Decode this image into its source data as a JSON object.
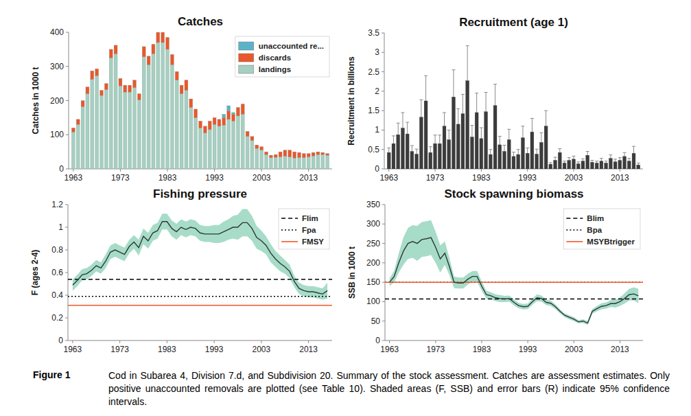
{
  "chart_data": [
    {
      "type": "bar",
      "title": "Catches",
      "y_label": "Catches in 1000 t",
      "stacked": true,
      "legend": "top-right",
      "x": [
        1963,
        1964,
        1965,
        1966,
        1967,
        1968,
        1969,
        1970,
        1971,
        1972,
        1973,
        1974,
        1975,
        1976,
        1977,
        1978,
        1979,
        1980,
        1981,
        1982,
        1983,
        1984,
        1985,
        1986,
        1987,
        1988,
        1989,
        1990,
        1991,
        1992,
        1993,
        1994,
        1995,
        1996,
        1997,
        1998,
        1999,
        2000,
        2001,
        2002,
        2003,
        2004,
        2005,
        2006,
        2007,
        2008,
        2009,
        2010,
        2011,
        2012,
        2013,
        2014,
        2015,
        2016,
        2017
      ],
      "xlim": [
        1962,
        2018
      ],
      "xticks": [
        1963,
        1973,
        1983,
        1993,
        2003,
        2013
      ],
      "ylim": [
        0,
        400
      ],
      "yticks": [
        0,
        100,
        200,
        300,
        400
      ],
      "series": [
        {
          "name": "landings",
          "color": "#a6cfc1",
          "values": [
            108,
            130,
            182,
            220,
            262,
            273,
            215,
            232,
            325,
            337,
            243,
            225,
            225,
            238,
            202,
            328,
            305,
            337,
            370,
            370,
            350,
            305,
            260,
            220,
            230,
            180,
            150,
            120,
            105,
            115,
            130,
            125,
            128,
            145,
            140,
            155,
            160,
            95,
            83,
            60,
            55,
            42,
            33,
            34,
            35,
            37,
            35,
            32,
            33,
            33,
            35,
            38,
            42,
            42,
            40
          ]
        },
        {
          "name": "discards",
          "color": "#e8582c",
          "values": [
            12,
            15,
            18,
            20,
            25,
            20,
            15,
            18,
            25,
            25,
            22,
            20,
            20,
            22,
            18,
            30,
            25,
            28,
            30,
            30,
            35,
            30,
            25,
            25,
            30,
            25,
            25,
            20,
            20,
            25,
            20,
            20,
            22,
            25,
            20,
            25,
            30,
            15,
            12,
            10,
            10,
            8,
            7,
            8,
            15,
            18,
            20,
            18,
            15,
            12,
            10,
            10,
            8,
            6,
            5
          ]
        },
        {
          "name": "unaccounted re...",
          "color": "#5bb3c7",
          "values": [
            0,
            0,
            0,
            0,
            0,
            0,
            0,
            0,
            0,
            0,
            0,
            0,
            0,
            0,
            0,
            0,
            0,
            0,
            0,
            0,
            0,
            0,
            0,
            0,
            0,
            0,
            0,
            0,
            0,
            0,
            0,
            0,
            10,
            15,
            5,
            0,
            0,
            0,
            0,
            0,
            0,
            0,
            0,
            0,
            0,
            0,
            0,
            0,
            0,
            0,
            0,
            0,
            0,
            0,
            0
          ]
        }
      ]
    },
    {
      "type": "bar",
      "title": "Recruitment (age 1)",
      "y_label": "Recruitment in billions",
      "color": "#3c3c3c",
      "x": [
        1963,
        1964,
        1965,
        1966,
        1967,
        1968,
        1969,
        1970,
        1971,
        1972,
        1973,
        1974,
        1975,
        1976,
        1977,
        1978,
        1979,
        1980,
        1981,
        1982,
        1983,
        1984,
        1985,
        1986,
        1987,
        1988,
        1989,
        1990,
        1991,
        1992,
        1993,
        1994,
        1995,
        1996,
        1997,
        1998,
        1999,
        2000,
        2001,
        2002,
        2003,
        2004,
        2005,
        2006,
        2007,
        2008,
        2009,
        2010,
        2011,
        2012,
        2013,
        2014,
        2015,
        2016,
        2017
      ],
      "xlim": [
        1962,
        2018
      ],
      "xticks": [
        1963,
        1973,
        1983,
        1993,
        2003,
        2013
      ],
      "ylim": [
        0,
        3.5
      ],
      "yticks": [
        0,
        0.5,
        1,
        1.5,
        2,
        2.5,
        3,
        3.5
      ],
      "values": [
        0.42,
        0.65,
        0.88,
        1.05,
        0.9,
        0.45,
        0.38,
        1.33,
        1.75,
        0.42,
        0.65,
        0.65,
        1.1,
        0.75,
        1.85,
        1.15,
        1.42,
        2.27,
        0.82,
        1.45,
        0.78,
        1.47,
        0.37,
        1.63,
        0.62,
        0.45,
        0.75,
        0.32,
        0.37,
        0.8,
        0.4,
        0.95,
        0.38,
        0.68,
        1.1,
        0.12,
        0.22,
        0.42,
        0.15,
        0.22,
        0.25,
        0.13,
        0.2,
        0.35,
        0.17,
        0.15,
        0.2,
        0.15,
        0.27,
        0.18,
        0.22,
        0.32,
        0.2,
        0.4,
        0.1
      ],
      "errors": [
        0.12,
        0.2,
        0.3,
        0.4,
        0.3,
        0.15,
        0.13,
        0.45,
        0.65,
        0.15,
        0.22,
        0.22,
        0.35,
        0.25,
        0.7,
        0.4,
        0.5,
        0.9,
        0.3,
        0.5,
        0.28,
        0.5,
        0.13,
        0.55,
        0.22,
        0.16,
        0.27,
        0.11,
        0.13,
        0.3,
        0.14,
        0.35,
        0.13,
        0.25,
        0.4,
        0.04,
        0.08,
        0.1,
        0.05,
        0.07,
        0.08,
        0.05,
        0.06,
        0.1,
        0.05,
        0.05,
        0.07,
        0.05,
        0.09,
        0.07,
        0.07,
        0.1,
        0.07,
        0.18,
        0.05
      ]
    },
    {
      "type": "line",
      "title": "Fishing pressure",
      "y_label": "F (ages 2-4)",
      "color": "#2b3a35",
      "legend": "top-right",
      "x": [
        1963,
        1964,
        1965,
        1966,
        1967,
        1968,
        1969,
        1970,
        1971,
        1972,
        1973,
        1974,
        1975,
        1976,
        1977,
        1978,
        1979,
        1980,
        1981,
        1982,
        1983,
        1984,
        1985,
        1986,
        1987,
        1988,
        1989,
        1990,
        1991,
        1992,
        1993,
        1994,
        1995,
        1996,
        1997,
        1998,
        1999,
        2000,
        2001,
        2002,
        2003,
        2004,
        2005,
        2006,
        2007,
        2008,
        2009,
        2010,
        2011,
        2012,
        2013,
        2014,
        2015,
        2016,
        2017
      ],
      "xlim": [
        1962,
        2018
      ],
      "xticks": [
        1963,
        1973,
        1983,
        1993,
        2003,
        2013
      ],
      "ylim": [
        0,
        1.2
      ],
      "yticks": [
        0,
        0.2,
        0.4,
        0.6,
        0.8,
        1,
        1.2
      ],
      "values": [
        0.49,
        0.53,
        0.58,
        0.59,
        0.62,
        0.66,
        0.64,
        0.7,
        0.78,
        0.8,
        0.78,
        0.76,
        0.83,
        0.87,
        0.82,
        0.92,
        0.88,
        0.95,
        0.97,
        1.05,
        1.05,
        0.99,
        0.96,
        1.0,
        0.98,
        1.0,
        0.99,
        0.95,
        0.94,
        0.94,
        0.94,
        0.94,
        0.96,
        0.98,
        1.0,
        1.0,
        1.04,
        1.04,
        0.99,
        0.91,
        0.88,
        0.84,
        0.77,
        0.72,
        0.68,
        0.65,
        0.61,
        0.52,
        0.46,
        0.44,
        0.43,
        0.43,
        0.42,
        0.41,
        0.44
      ],
      "ci": [
        0.05,
        0.05,
        0.05,
        0.05,
        0.05,
        0.05,
        0.05,
        0.06,
        0.06,
        0.06,
        0.06,
        0.06,
        0.06,
        0.06,
        0.07,
        0.07,
        0.07,
        0.07,
        0.07,
        0.07,
        0.07,
        0.07,
        0.07,
        0.07,
        0.07,
        0.07,
        0.07,
        0.07,
        0.07,
        0.07,
        0.08,
        0.08,
        0.09,
        0.09,
        0.1,
        0.11,
        0.12,
        0.12,
        0.11,
        0.1,
        0.09,
        0.08,
        0.08,
        0.07,
        0.07,
        0.06,
        0.06,
        0.05,
        0.05,
        0.05,
        0.05,
        0.05,
        0.05,
        0.05,
        0.07
      ],
      "reference_lines": [
        {
          "name": "Flim",
          "value": 0.54,
          "line_style": "dashed",
          "color": "#000000"
        },
        {
          "name": "Fpa",
          "value": 0.39,
          "line_style": "dotted",
          "color": "#000000"
        },
        {
          "name": "FMSY",
          "value": 0.31,
          "line_style": "solid",
          "color": "#f05a28"
        }
      ]
    },
    {
      "type": "line",
      "title": "Stock spawning biomass",
      "y_label": "SSB in 1000 t",
      "color": "#2b3a35",
      "legend": "top-right",
      "x": [
        1963,
        1964,
        1965,
        1966,
        1967,
        1968,
        1969,
        1970,
        1971,
        1972,
        1973,
        1974,
        1975,
        1976,
        1977,
        1978,
        1979,
        1980,
        1981,
        1982,
        1983,
        1984,
        1985,
        1986,
        1987,
        1988,
        1989,
        1990,
        1991,
        1992,
        1993,
        1994,
        1995,
        1996,
        1997,
        1998,
        1999,
        2000,
        2001,
        2002,
        2003,
        2004,
        2005,
        2006,
        2007,
        2008,
        2009,
        2010,
        2011,
        2012,
        2013,
        2014,
        2015,
        2016,
        2017
      ],
      "xlim": [
        1962,
        2018
      ],
      "xticks": [
        1963,
        1973,
        1983,
        1993,
        2003,
        2013
      ],
      "ylim": [
        0,
        350
      ],
      "yticks": [
        0,
        50,
        100,
        150,
        200,
        250,
        300,
        350
      ],
      "values": [
        150,
        165,
        200,
        230,
        250,
        255,
        250,
        260,
        262,
        265,
        240,
        210,
        225,
        190,
        150,
        148,
        148,
        158,
        165,
        165,
        140,
        118,
        115,
        110,
        108,
        107,
        108,
        98,
        90,
        87,
        88,
        100,
        110,
        108,
        98,
        96,
        87,
        75,
        65,
        60,
        55,
        48,
        50,
        45,
        75,
        82,
        88,
        90,
        95,
        95,
        100,
        108,
        118,
        120,
        115
      ],
      "ci": [
        10,
        15,
        25,
        35,
        40,
        42,
        45,
        45,
        45,
        45,
        40,
        35,
        30,
        22,
        15,
        14,
        14,
        14,
        14,
        14,
        12,
        10,
        9,
        9,
        9,
        8,
        8,
        8,
        7,
        7,
        7,
        8,
        9,
        8,
        7,
        7,
        6,
        5,
        5,
        5,
        5,
        4,
        5,
        5,
        6,
        7,
        8,
        8,
        9,
        10,
        11,
        13,
        15,
        17,
        18
      ],
      "reference_lines": [
        {
          "name": "Blim",
          "value": 107,
          "line_style": "dashed",
          "color": "#000000"
        },
        {
          "name": "Bpa",
          "value": 150,
          "line_style": "dotted",
          "color": "#000000"
        },
        {
          "name": "MSYBtrigger",
          "value": 150,
          "line_style": "solid",
          "color": "#f05a28"
        }
      ]
    }
  ],
  "figure": {
    "label": "Figure 1",
    "caption": "Cod in Subarea 4, Division 7.d, and Subdivision 20. Summary of the stock assessment. Catches are assessment estimates. Only positive unaccounted removals are plotted (see Table 10). Shaded areas (F, SSB) and error bars (R) indicate 95% confidence intervals."
  }
}
